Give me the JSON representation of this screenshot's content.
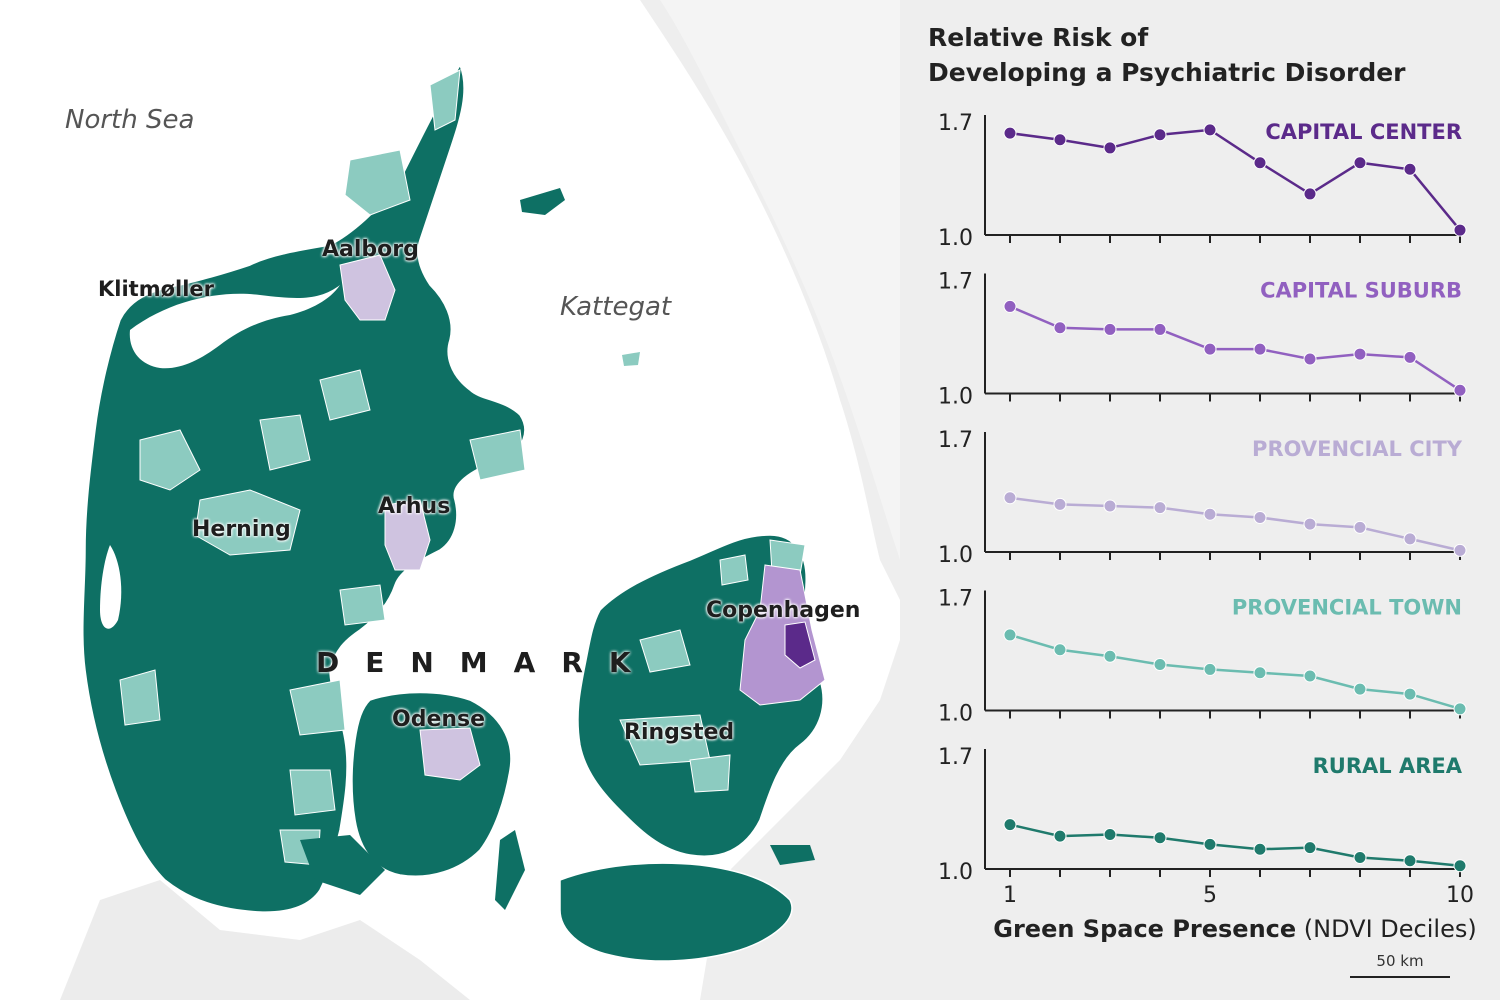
{
  "map": {
    "seas": [
      "North Sea",
      "Kattegat"
    ],
    "places": [
      "Aalborg",
      "Klitmøller",
      "Arhus",
      "Herning",
      "Copenhagen",
      "Odense",
      "Ringsted"
    ],
    "country": "DENMARK",
    "scale_label": "50 km",
    "colors": {
      "rural": "#0e7064",
      "town": "#8ccbc0",
      "city": "#cfc3e0",
      "suburb": "#b395d0",
      "center": "#5b2a8a",
      "land_other": "#e6e6e6",
      "sea": "#ffffff"
    }
  },
  "chart_data": {
    "type": "line",
    "title_lines": [
      "Relative Risk of",
      "Developing a Psychiatric Disorder"
    ],
    "xlabel_bold": "Green Space Presence",
    "xlabel_rest": " (NDVI Deciles)",
    "x": [
      1,
      2,
      3,
      4,
      5,
      6,
      7,
      8,
      9,
      10
    ],
    "x_ticks_labeled": [
      "1",
      "5",
      "10"
    ],
    "ylim": [
      1.0,
      1.7
    ],
    "y_ticks": [
      "1.7",
      "1.0"
    ],
    "series": [
      {
        "name": "CAPITAL CENTER",
        "color": "#5b2a8a",
        "values": [
          1.62,
          1.58,
          1.53,
          1.61,
          1.64,
          1.44,
          1.25,
          1.44,
          1.4,
          1.03
        ]
      },
      {
        "name": "CAPITAL SUBURB",
        "color": "#9160c0",
        "values": [
          1.53,
          1.4,
          1.39,
          1.39,
          1.27,
          1.27,
          1.21,
          1.24,
          1.22,
          1.02
        ]
      },
      {
        "name": "PROVENCIAL CITY",
        "color": "#b9acd4",
        "values": [
          1.33,
          1.29,
          1.28,
          1.27,
          1.23,
          1.21,
          1.17,
          1.15,
          1.08,
          1.01
        ]
      },
      {
        "name": "PROVENCIAL TOWN",
        "color": "#6bbcb0",
        "values": [
          1.46,
          1.37,
          1.33,
          1.28,
          1.25,
          1.23,
          1.21,
          1.13,
          1.1,
          1.01
        ]
      },
      {
        "name": "RURAL AREA",
        "color": "#1f7a6c",
        "values": [
          1.27,
          1.2,
          1.21,
          1.19,
          1.15,
          1.12,
          1.13,
          1.07,
          1.05,
          1.02
        ]
      }
    ]
  }
}
